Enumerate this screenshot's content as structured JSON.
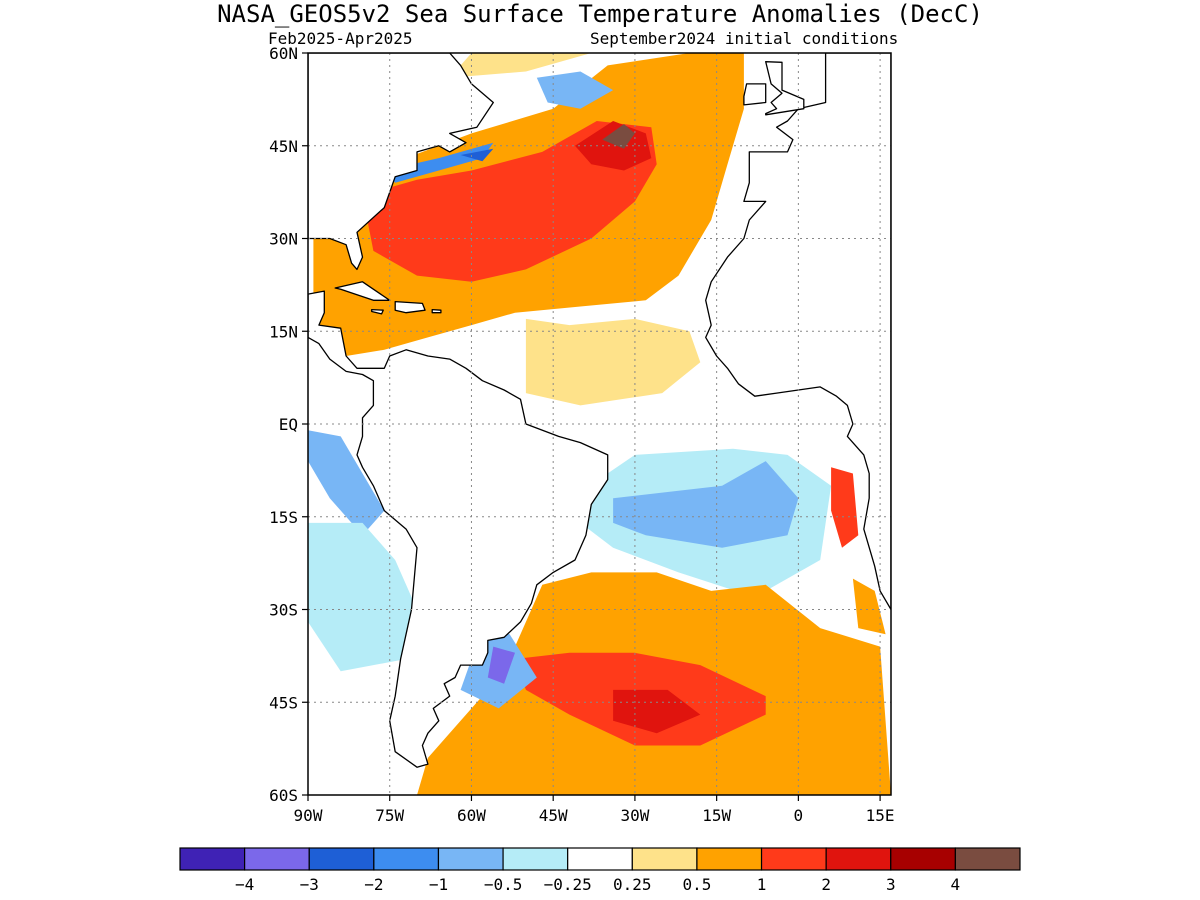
{
  "map": {
    "title": "NASA_GEOS5v2 Sea Surface Temperature Anomalies (DecC)",
    "period": "Feb2025-Apr2025",
    "initial_conditions": "September2024 initial conditions",
    "lat_range": [
      -60,
      60
    ],
    "lon_range": [
      -90,
      17
    ],
    "lat_ticks": [
      {
        "value": 60,
        "label": "60N"
      },
      {
        "value": 45,
        "label": "45N"
      },
      {
        "value": 30,
        "label": "30N"
      },
      {
        "value": 15,
        "label": "15N"
      },
      {
        "value": 0,
        "label": "EQ"
      },
      {
        "value": -15,
        "label": "15S"
      },
      {
        "value": -30,
        "label": "30S"
      },
      {
        "value": -45,
        "label": "45S"
      },
      {
        "value": -60,
        "label": "60S"
      }
    ],
    "lon_ticks": [
      {
        "value": -90,
        "label": "90W"
      },
      {
        "value": -75,
        "label": "75W"
      },
      {
        "value": -60,
        "label": "60W"
      },
      {
        "value": -45,
        "label": "45W"
      },
      {
        "value": -30,
        "label": "30W"
      },
      {
        "value": -15,
        "label": "15W"
      },
      {
        "value": 0,
        "label": "0"
      },
      {
        "value": 15,
        "label": "15E"
      }
    ],
    "grid": true
  },
  "colorbar": {
    "colors": [
      "#3f22b5",
      "#7b68ea",
      "#1e5fd6",
      "#3d8df0",
      "#78b6f5",
      "#b5ecf7",
      "#ffffff",
      "#fee28a",
      "#ffa200",
      "#ff3a1a",
      "#e0140e",
      "#a70000",
      "#7a4c40"
    ],
    "labels": [
      "−4",
      "−3",
      "−2",
      "−1",
      "−0.5",
      "−0.25",
      "0.25",
      "0.5",
      "1",
      "2",
      "3",
      "4"
    ]
  },
  "anomaly_regions": [
    {
      "class": 8,
      "ring": [
        [
          -89,
          37
        ],
        [
          -75,
          42
        ],
        [
          -60,
          47
        ],
        [
          -45,
          51
        ],
        [
          -35,
          58
        ],
        [
          -20,
          60
        ],
        [
          -10,
          60
        ],
        [
          -10,
          51
        ],
        [
          -13,
          42
        ],
        [
          -16,
          33
        ],
        [
          -22,
          24
        ],
        [
          -28,
          20
        ],
        [
          -40,
          19
        ],
        [
          -52,
          18
        ],
        [
          -60,
          16
        ],
        [
          -68,
          14
        ],
        [
          -76,
          12
        ],
        [
          -83,
          11
        ],
        [
          -89,
          14
        ]
      ]
    },
    {
      "class": 9,
      "ring": [
        [
          -80,
          37
        ],
        [
          -70,
          39.5
        ],
        [
          -60,
          41
        ],
        [
          -47,
          44
        ],
        [
          -37,
          49
        ],
        [
          -27,
          48
        ],
        [
          -26,
          42
        ],
        [
          -30,
          36
        ],
        [
          -38,
          30
        ],
        [
          -50,
          25
        ],
        [
          -60,
          23
        ],
        [
          -70,
          24
        ],
        [
          -78,
          28
        ]
      ]
    },
    {
      "class": 10,
      "ring": [
        [
          -41,
          45
        ],
        [
          -34,
          49
        ],
        [
          -28,
          47
        ],
        [
          -27,
          43
        ],
        [
          -32,
          41
        ],
        [
          -38,
          42
        ]
      ]
    },
    {
      "class": 12,
      "ring": [
        [
          -36,
          46
        ],
        [
          -32,
          48.5
        ],
        [
          -30,
          47
        ],
        [
          -32,
          44.5
        ]
      ]
    },
    {
      "class": 7,
      "ring": [
        [
          -50,
          17
        ],
        [
          -42,
          16
        ],
        [
          -30,
          17
        ],
        [
          -20,
          15
        ],
        [
          -18,
          10
        ],
        [
          -25,
          5
        ],
        [
          -40,
          3
        ],
        [
          -50,
          5
        ]
      ]
    },
    {
      "class": 7,
      "ring": [
        [
          -64,
          56
        ],
        [
          -50,
          57
        ],
        [
          -38,
          60
        ],
        [
          -60,
          60
        ]
      ]
    },
    {
      "class": 3,
      "ring": [
        [
          -76,
          41
        ],
        [
          -66,
          43
        ],
        [
          -56,
          45.5
        ],
        [
          -58,
          43
        ],
        [
          -66,
          41
        ],
        [
          -74,
          39
        ]
      ]
    },
    {
      "class": 2,
      "ring": [
        [
          -62,
          43.5
        ],
        [
          -56,
          44.5
        ],
        [
          -58,
          42.5
        ]
      ]
    },
    {
      "class": 4,
      "ring": [
        [
          -48,
          56
        ],
        [
          -40,
          57
        ],
        [
          -34,
          54
        ],
        [
          -40,
          51
        ],
        [
          -46,
          52
        ]
      ]
    },
    {
      "class": 11,
      "ring": [
        [
          -66,
          50
        ],
        [
          -62,
          50
        ],
        [
          -62,
          47.5
        ],
        [
          -66,
          47.5
        ]
      ]
    },
    {
      "class": 8,
      "ring": [
        [
          -89,
          18
        ],
        [
          -82,
          20
        ],
        [
          -76,
          24
        ],
        [
          -88,
          24
        ]
      ]
    },
    {
      "class": 4,
      "ring": [
        [
          -90,
          -1
        ],
        [
          -84,
          -2
        ],
        [
          -80,
          -8
        ],
        [
          -76,
          -14
        ],
        [
          -80,
          -18
        ],
        [
          -86,
          -12
        ],
        [
          -90,
          -6
        ]
      ]
    },
    {
      "class": 5,
      "ring": [
        [
          -90,
          -16
        ],
        [
          -80,
          -16
        ],
        [
          -74,
          -22
        ],
        [
          -70,
          -30
        ],
        [
          -72,
          -38
        ],
        [
          -84,
          -40
        ],
        [
          -90,
          -32
        ]
      ]
    },
    {
      "class": 5,
      "ring": [
        [
          -40,
          -11
        ],
        [
          -30,
          -5
        ],
        [
          -12,
          -4
        ],
        [
          -2,
          -5
        ],
        [
          6,
          -10
        ],
        [
          4,
          -22
        ],
        [
          -8,
          -28
        ],
        [
          -22,
          -24
        ],
        [
          -34,
          -20
        ],
        [
          -40,
          -16
        ]
      ]
    },
    {
      "class": 4,
      "ring": [
        [
          -34,
          -12
        ],
        [
          -24,
          -11
        ],
        [
          -14,
          -10
        ],
        [
          -6,
          -6
        ],
        [
          0,
          -12
        ],
        [
          -2,
          -18
        ],
        [
          -14,
          -20
        ],
        [
          -28,
          -18
        ],
        [
          -34,
          -16
        ]
      ]
    },
    {
      "class": 8,
      "ring": [
        [
          -47,
          -26
        ],
        [
          -38,
          -24
        ],
        [
          -26,
          -24
        ],
        [
          -16,
          -27
        ],
        [
          -6,
          -26
        ],
        [
          4,
          -33
        ],
        [
          15,
          -36
        ],
        [
          17,
          -60
        ],
        [
          -70,
          -60
        ],
        [
          -68,
          -54
        ],
        [
          -62,
          -48
        ],
        [
          -56,
          -42
        ],
        [
          -52,
          -36
        ]
      ]
    },
    {
      "class": 9,
      "ring": [
        [
          -52,
          -38
        ],
        [
          -42,
          -37
        ],
        [
          -30,
          -37
        ],
        [
          -18,
          -39
        ],
        [
          -6,
          -44
        ],
        [
          -6,
          -47
        ],
        [
          -18,
          -52
        ],
        [
          -30,
          -52
        ],
        [
          -42,
          -47
        ],
        [
          -50,
          -43
        ]
      ]
    },
    {
      "class": 10,
      "ring": [
        [
          -34,
          -43
        ],
        [
          -24,
          -43
        ],
        [
          -18,
          -47
        ],
        [
          -26,
          -50
        ],
        [
          -34,
          -48
        ]
      ]
    },
    {
      "class": 4,
      "ring": [
        [
          -58,
          -33
        ],
        [
          -53,
          -34
        ],
        [
          -48,
          -41
        ],
        [
          -55,
          -46
        ],
        [
          -62,
          -43
        ]
      ]
    },
    {
      "class": 1,
      "ring": [
        [
          -56,
          -36
        ],
        [
          -52,
          -37
        ],
        [
          -54,
          -42
        ],
        [
          -57,
          -41
        ]
      ]
    },
    {
      "class": 9,
      "ring": [
        [
          6,
          -7
        ],
        [
          10,
          -8
        ],
        [
          11,
          -18
        ],
        [
          8,
          -20
        ],
        [
          6,
          -14
        ]
      ]
    },
    {
      "class": 8,
      "ring": [
        [
          10,
          -25
        ],
        [
          14,
          -27
        ],
        [
          16,
          -34
        ],
        [
          11,
          -33
        ]
      ]
    },
    {
      "class": 8,
      "ring": [
        [
          1,
          44
        ],
        [
          8,
          44
        ],
        [
          12,
          45
        ],
        [
          8,
          42
        ],
        [
          2,
          41
        ]
      ]
    }
  ],
  "land": [
    {
      "ring": [
        [
          -90,
          30
        ],
        [
          -86,
          30
        ],
        [
          -83,
          29
        ],
        [
          -82,
          26
        ],
        [
          -81,
          25
        ],
        [
          -80,
          27
        ],
        [
          -81,
          31
        ],
        [
          -76,
          35
        ],
        [
          -74,
          40
        ],
        [
          -70,
          41
        ],
        [
          -70,
          44
        ],
        [
          -66,
          45
        ],
        [
          -64,
          44
        ],
        [
          -61,
          45.5
        ],
        [
          -64,
          47
        ],
        [
          -59,
          48
        ],
        [
          -56,
          52
        ],
        [
          -60,
          55
        ],
        [
          -62,
          58
        ],
        [
          -64,
          60
        ],
        [
          -90,
          60
        ]
      ]
    },
    {
      "ring": [
        [
          -90,
          21
        ],
        [
          -87,
          21.5
        ],
        [
          -87,
          18
        ],
        [
          -88,
          16
        ],
        [
          -84,
          15.5
        ],
        [
          -83,
          11
        ],
        [
          -81,
          9
        ],
        [
          -78,
          9
        ],
        [
          -76,
          9
        ],
        [
          -75,
          11
        ],
        [
          -72,
          12
        ],
        [
          -68,
          11
        ],
        [
          -64,
          10.5
        ],
        [
          -61,
          9
        ],
        [
          -58,
          7
        ],
        [
          -54,
          5.5
        ],
        [
          -51,
          4
        ],
        [
          -50,
          0
        ],
        [
          -44,
          -2
        ],
        [
          -40,
          -3
        ],
        [
          -35,
          -5
        ],
        [
          -35,
          -9
        ],
        [
          -38,
          -13
        ],
        [
          -39,
          -18
        ],
        [
          -41,
          -22
        ],
        [
          -45,
          -24
        ],
        [
          -48,
          -26
        ],
        [
          -49,
          -29
        ],
        [
          -51,
          -32
        ],
        [
          -54,
          -34.5
        ],
        [
          -57,
          -35
        ],
        [
          -57,
          -37
        ],
        [
          -58,
          -39
        ],
        [
          -62,
          -39
        ],
        [
          -63,
          -41
        ],
        [
          -65,
          -42
        ],
        [
          -64,
          -44
        ],
        [
          -67,
          -46
        ],
        [
          -66,
          -48
        ],
        [
          -68,
          -50
        ],
        [
          -69,
          -52
        ],
        [
          -68,
          -55
        ],
        [
          -70,
          -55.5
        ],
        [
          -74,
          -53
        ],
        [
          -75,
          -48
        ],
        [
          -74,
          -44
        ],
        [
          -73,
          -38
        ],
        [
          -71,
          -30
        ],
        [
          -70,
          -20
        ],
        [
          -72,
          -17
        ],
        [
          -76,
          -14
        ],
        [
          -78,
          -10
        ],
        [
          -80,
          -7
        ],
        [
          -81,
          -5
        ],
        [
          -80,
          -2
        ],
        [
          -80,
          1
        ],
        [
          -78,
          3
        ],
        [
          -78,
          7
        ],
        [
          -80,
          8
        ],
        [
          -83,
          8.5
        ],
        [
          -86,
          10.5
        ],
        [
          -88,
          13
        ],
        [
          -90,
          14
        ]
      ]
    },
    {
      "ring": [
        [
          -10,
          36
        ],
        [
          -6,
          36
        ],
        [
          -9,
          33
        ],
        [
          -10,
          30
        ],
        [
          -13,
          27
        ],
        [
          -16,
          23
        ],
        [
          -17,
          20
        ],
        [
          -16,
          16
        ],
        [
          -17,
          14
        ],
        [
          -15,
          11
        ],
        [
          -13,
          9
        ],
        [
          -11,
          6.5
        ],
        [
          -8,
          4.5
        ],
        [
          -4,
          5
        ],
        [
          0,
          5.5
        ],
        [
          4,
          6
        ],
        [
          7,
          4.5
        ],
        [
          9,
          3
        ],
        [
          10,
          0
        ],
        [
          9,
          -2
        ],
        [
          12,
          -5
        ],
        [
          13,
          -8
        ],
        [
          13,
          -12
        ],
        [
          12,
          -17
        ],
        [
          14,
          -23
        ],
        [
          15,
          -27
        ],
        [
          17,
          -30
        ],
        [
          17,
          60
        ],
        [
          5,
          60
        ],
        [
          5,
          52
        ],
        [
          0,
          51
        ],
        [
          -2,
          49
        ],
        [
          -4,
          48
        ],
        [
          -1,
          46
        ],
        [
          -2,
          44
        ],
        [
          -9,
          44
        ],
        [
          -9,
          39
        ]
      ]
    },
    {
      "ring": [
        [
          -6,
          50
        ],
        [
          1,
          51
        ],
        [
          1,
          52.5
        ],
        [
          -3,
          54
        ],
        [
          -3,
          58.5
        ],
        [
          -6,
          58.6
        ],
        [
          -5,
          55
        ],
        [
          -3,
          53.5
        ],
        [
          -5,
          52
        ],
        [
          -4,
          51
        ],
        [
          -6,
          50.2
        ]
      ]
    },
    {
      "ring": [
        [
          -10,
          51.6
        ],
        [
          -6,
          52
        ],
        [
          -6,
          55
        ],
        [
          -9.5,
          55
        ],
        [
          -10,
          53
        ]
      ]
    },
    {
      "ring": [
        [
          -85,
          22
        ],
        [
          -80,
          23
        ],
        [
          -75,
          20
        ],
        [
          -78,
          20
        ],
        [
          -84,
          21.8
        ]
      ]
    },
    {
      "ring": [
        [
          -74,
          19.8
        ],
        [
          -69,
          19.5
        ],
        [
          -68.5,
          18.4
        ],
        [
          -72,
          18
        ],
        [
          -74,
          18.4
        ]
      ]
    },
    {
      "ring": [
        [
          -67.2,
          18.5
        ],
        [
          -65.6,
          18.4
        ],
        [
          -65.6,
          18
        ],
        [
          -67.2,
          18
        ]
      ]
    },
    {
      "ring": [
        [
          -78.3,
          18.5
        ],
        [
          -76.2,
          18.4
        ],
        [
          -76.5,
          17.8
        ],
        [
          -78.3,
          18.2
        ]
      ]
    }
  ]
}
